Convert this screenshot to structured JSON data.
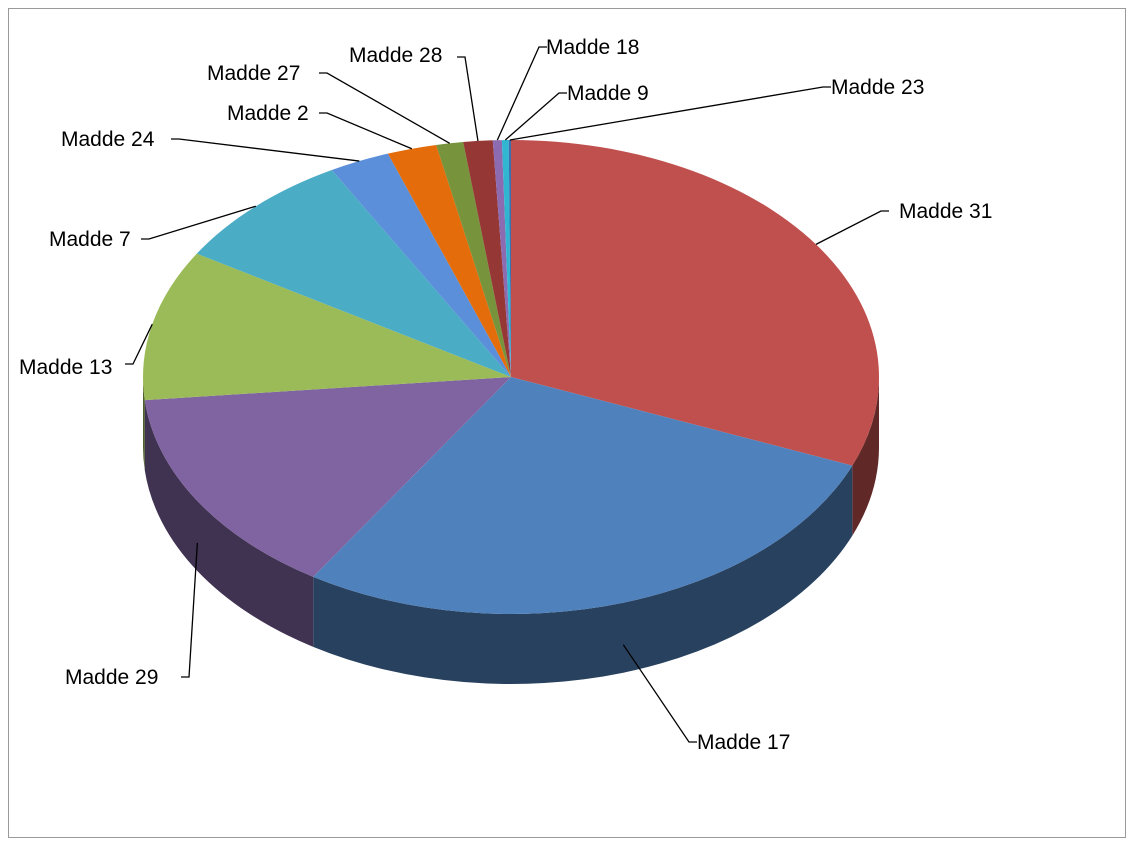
{
  "chart_data": {
    "type": "pie",
    "style": "3d",
    "title": "",
    "legend": "none",
    "slices": [
      {
        "label": "Madde 31",
        "value": 31.5,
        "color": "#C0504D"
      },
      {
        "label": "Madde 17",
        "value": 28.3,
        "color": "#4F81BD"
      },
      {
        "label": "Madde 29",
        "value": 14.6,
        "color": "#8064A2"
      },
      {
        "label": "Madde 13",
        "value": 10.4,
        "color": "#9BBB59"
      },
      {
        "label": "Madde 7",
        "value": 8.3,
        "color": "#4BACC6"
      },
      {
        "label": "Madde 24",
        "value": 2.7,
        "color": "#5B8FD9"
      },
      {
        "label": "Madde 2",
        "value": 2.2,
        "color": "#E46C0A"
      },
      {
        "label": "Madde 27",
        "value": 1.2,
        "color": "#77933C"
      },
      {
        "label": "Madde 28",
        "value": 1.3,
        "color": "#953735"
      },
      {
        "label": "Madde 18",
        "value": 0.4,
        "color": "#8C6BB1"
      },
      {
        "label": "Madde 9",
        "value": 0.3,
        "color": "#31B6D2"
      },
      {
        "label": "Madde 23",
        "value": 0.1,
        "color": "#3A6FB0"
      }
    ]
  }
}
